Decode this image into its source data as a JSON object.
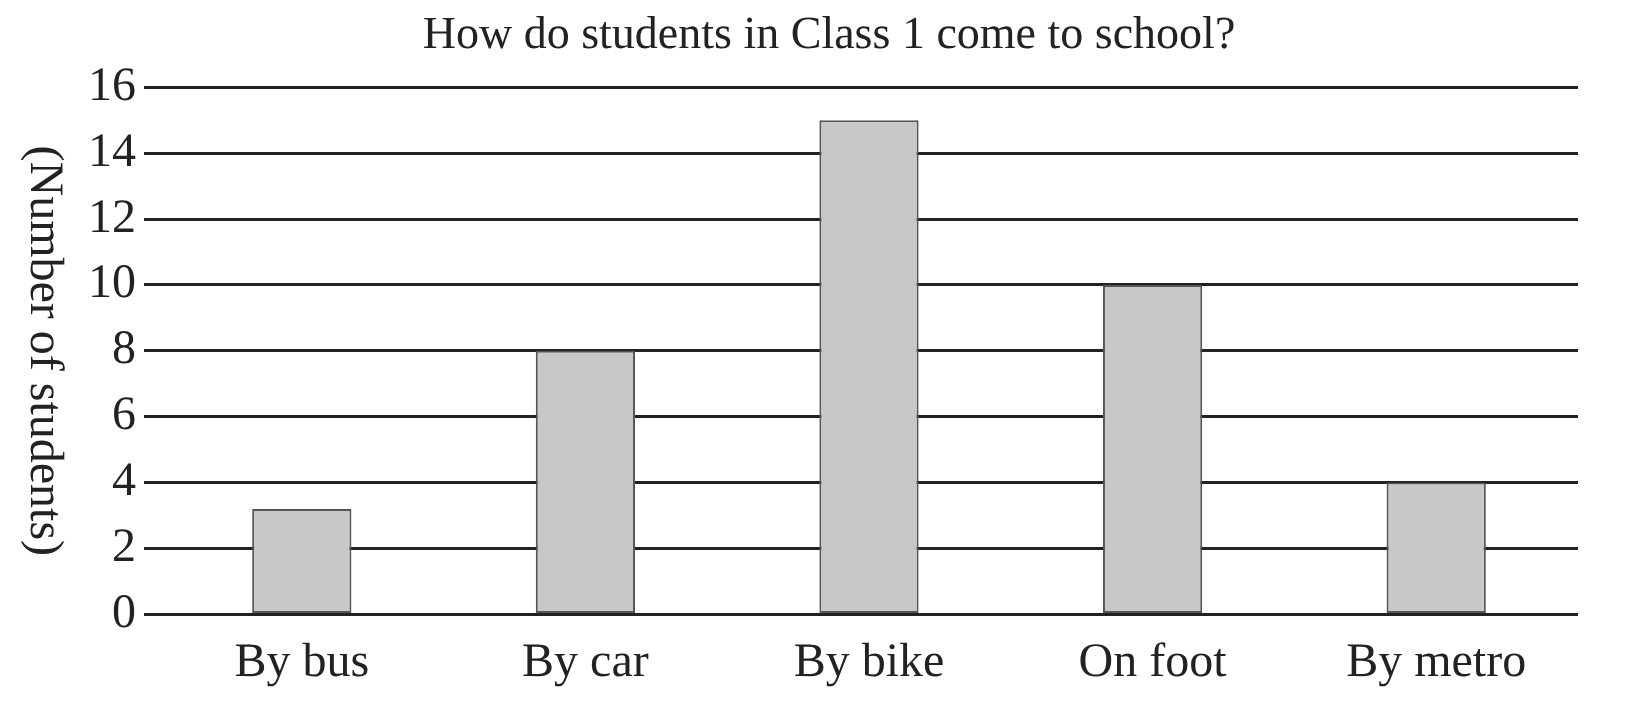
{
  "chart_data": {
    "type": "bar",
    "title": "How do students in Class 1 come to school?",
    "ylabel": "(Number of students)",
    "categories": [
      "By bus",
      "By car",
      "By bike",
      "On foot",
      "By metro"
    ],
    "values": [
      3.2,
      8,
      15,
      10,
      4
    ],
    "color": "#c8c8c8",
    "ylim": [
      0,
      16
    ],
    "yticks": [
      0,
      2,
      4,
      6,
      8,
      10,
      12,
      14,
      16
    ],
    "grid": "y"
  }
}
